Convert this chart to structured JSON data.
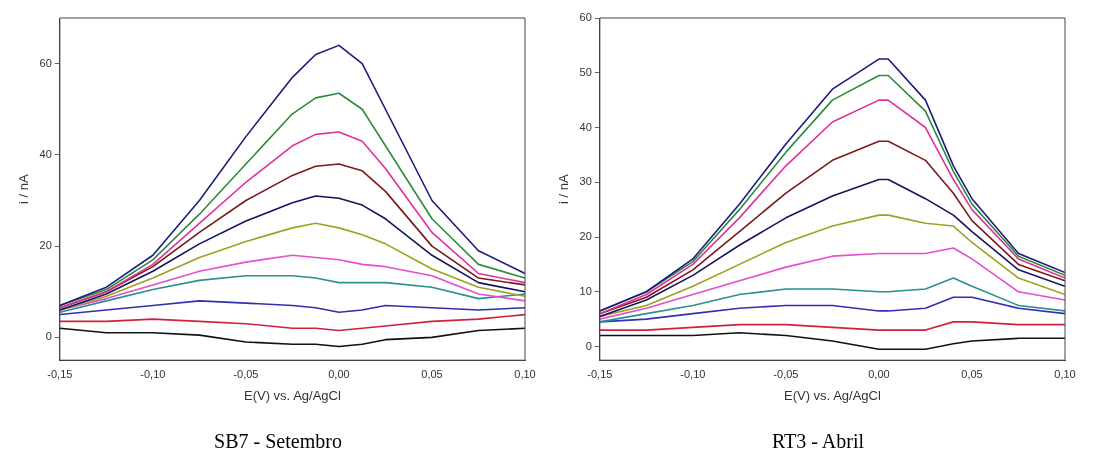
{
  "chart_data": [
    {
      "type": "line",
      "title": "SB7 - Setembro",
      "xlabel": "E(V) vs. Ag/AgCl",
      "ylabel": "i / nA",
      "marker": "none",
      "legend": false,
      "grid": false,
      "x": [
        -0.15,
        -0.125,
        -0.1,
        -0.075,
        -0.05,
        -0.025,
        -0.0125,
        0,
        0.0125,
        0.025,
        0.05,
        0.075,
        0.1
      ],
      "xlim": [
        -0.15,
        0.1
      ],
      "xticks": [
        {
          "value": -0.15,
          "label": "-0,15"
        },
        {
          "value": -0.1,
          "label": "-0,10"
        },
        {
          "value": -0.05,
          "label": "-0,05"
        },
        {
          "value": 0,
          "label": "0,00"
        },
        {
          "value": 0.05,
          "label": "0,05"
        },
        {
          "value": 0.1,
          "label": "0,10"
        }
      ],
      "ylim": [
        -5,
        70
      ],
      "yticks": [
        0,
        20,
        40,
        60
      ],
      "series": [
        {
          "color": "#1c1c7c",
          "values": [
            7,
            11,
            18,
            30,
            44,
            57,
            62,
            64,
            60,
            50,
            30,
            19,
            14
          ]
        },
        {
          "color": "#2e8b3e",
          "values": [
            7,
            10.5,
            17,
            27,
            38,
            49,
            52.5,
            53.5,
            50,
            42,
            26,
            16,
            13
          ]
        },
        {
          "color": "#e0309a",
          "values": [
            6.5,
            10,
            16,
            25,
            34,
            42,
            44.5,
            45,
            43,
            37,
            23,
            14,
            12
          ]
        },
        {
          "color": "#7a1a1a",
          "values": [
            6.5,
            10,
            15.5,
            23,
            30,
            35.5,
            37.5,
            38,
            36.5,
            32,
            20,
            13,
            11.5
          ]
        },
        {
          "color": "#15155e",
          "values": [
            6,
            9.5,
            14.5,
            20.5,
            25.5,
            29.5,
            31,
            30.5,
            29,
            26,
            18,
            12,
            10
          ]
        },
        {
          "color": "#a0a020",
          "values": [
            6,
            9,
            13,
            17.5,
            21,
            24,
            25,
            24,
            22.5,
            20.5,
            15,
            11,
            9
          ]
        },
        {
          "color": "#e050d0",
          "values": [
            6,
            8.5,
            11.5,
            14.5,
            16.5,
            18,
            17.5,
            17,
            16,
            15.5,
            13.5,
            9.5,
            8
          ]
        },
        {
          "color": "#2a9090",
          "values": [
            5.5,
            8,
            10.5,
            12.5,
            13.5,
            13.5,
            13,
            12,
            12,
            12,
            11,
            8.5,
            9.5
          ]
        },
        {
          "color": "#3030b0",
          "values": [
            5,
            6,
            7,
            8,
            7.5,
            7,
            6.5,
            5.5,
            6,
            7,
            6.5,
            6,
            6.5
          ]
        },
        {
          "color": "#d02040",
          "values": [
            3.5,
            3.5,
            4,
            3.5,
            3,
            2,
            2,
            1.5,
            2,
            2.5,
            3.5,
            4,
            5
          ]
        },
        {
          "color": "#111111",
          "values": [
            2,
            1,
            1,
            0.5,
            -1,
            -1.5,
            -1.5,
            -2,
            -1.5,
            -0.5,
            0,
            1.5,
            2
          ]
        }
      ]
    },
    {
      "type": "line",
      "title": "RT3 - Abril",
      "xlabel": "E(V) vs. Ag/AgCl",
      "ylabel": "i / nA",
      "marker": "none",
      "legend": false,
      "grid": false,
      "x": [
        -0.15,
        -0.125,
        -0.1,
        -0.075,
        -0.05,
        -0.025,
        0,
        0.005,
        0.025,
        0.04,
        0.05,
        0.075,
        0.1
      ],
      "xlim": [
        -0.15,
        0.1
      ],
      "xticks": [
        {
          "value": -0.15,
          "label": "-0,15"
        },
        {
          "value": -0.1,
          "label": "-0,10"
        },
        {
          "value": -0.05,
          "label": "-0,05"
        },
        {
          "value": 0,
          "label": "0,00"
        },
        {
          "value": 0.05,
          "label": "0,05"
        },
        {
          "value": 0.1,
          "label": "0,10"
        }
      ],
      "ylim": [
        -2.5,
        60
      ],
      "yticks": [
        0,
        10,
        20,
        30,
        40,
        50,
        60
      ],
      "series": [
        {
          "color": "#1c1c7c",
          "values": [
            6.5,
            10,
            16,
            26,
            37,
            47,
            52.5,
            52.5,
            45,
            33,
            27,
            17,
            13.5
          ]
        },
        {
          "color": "#2e8b3e",
          "values": [
            6.5,
            10,
            15.5,
            25,
            35.5,
            45,
            49.5,
            49.5,
            43,
            32,
            26,
            16.5,
            13
          ]
        },
        {
          "color": "#e0309a",
          "values": [
            6,
            9.5,
            15,
            23.5,
            33,
            41,
            45,
            45,
            40,
            30.5,
            25,
            16,
            12.5
          ]
        },
        {
          "color": "#7a1a1a",
          "values": [
            6,
            9,
            14,
            21,
            28,
            34,
            37.5,
            37.5,
            34,
            28,
            23,
            15,
            12
          ]
        },
        {
          "color": "#15155e",
          "values": [
            5.5,
            8.5,
            13,
            18.5,
            23.5,
            27.5,
            30.5,
            30.5,
            27,
            24,
            21,
            14,
            11
          ]
        },
        {
          "color": "#a0a020",
          "values": [
            5.5,
            7.5,
            11,
            15,
            19,
            22,
            24,
            24,
            22.5,
            22,
            19,
            12.5,
            9.5
          ]
        },
        {
          "color": "#e050d0",
          "values": [
            5,
            7,
            9.5,
            12,
            14.5,
            16.5,
            17,
            17,
            17,
            18,
            16,
            10,
            8.5
          ]
        },
        {
          "color": "#2a9090",
          "values": [
            4.5,
            6,
            7.5,
            9.5,
            10.5,
            10.5,
            10,
            10,
            10.5,
            12.5,
            11,
            7.5,
            6.5
          ]
        },
        {
          "color": "#3030b0",
          "values": [
            4.5,
            5,
            6,
            7,
            7.5,
            7.5,
            6.5,
            6.5,
            7,
            9,
            9,
            7,
            6
          ]
        },
        {
          "color": "#d02040",
          "values": [
            3,
            3,
            3.5,
            4,
            4,
            3.5,
            3,
            3,
            3,
            4.5,
            4.5,
            4,
            4
          ]
        },
        {
          "color": "#111111",
          "values": [
            2,
            2,
            2,
            2.5,
            2,
            1,
            -0.5,
            -0.5,
            -0.5,
            0.5,
            1,
            1.5,
            1.5
          ]
        }
      ]
    }
  ]
}
